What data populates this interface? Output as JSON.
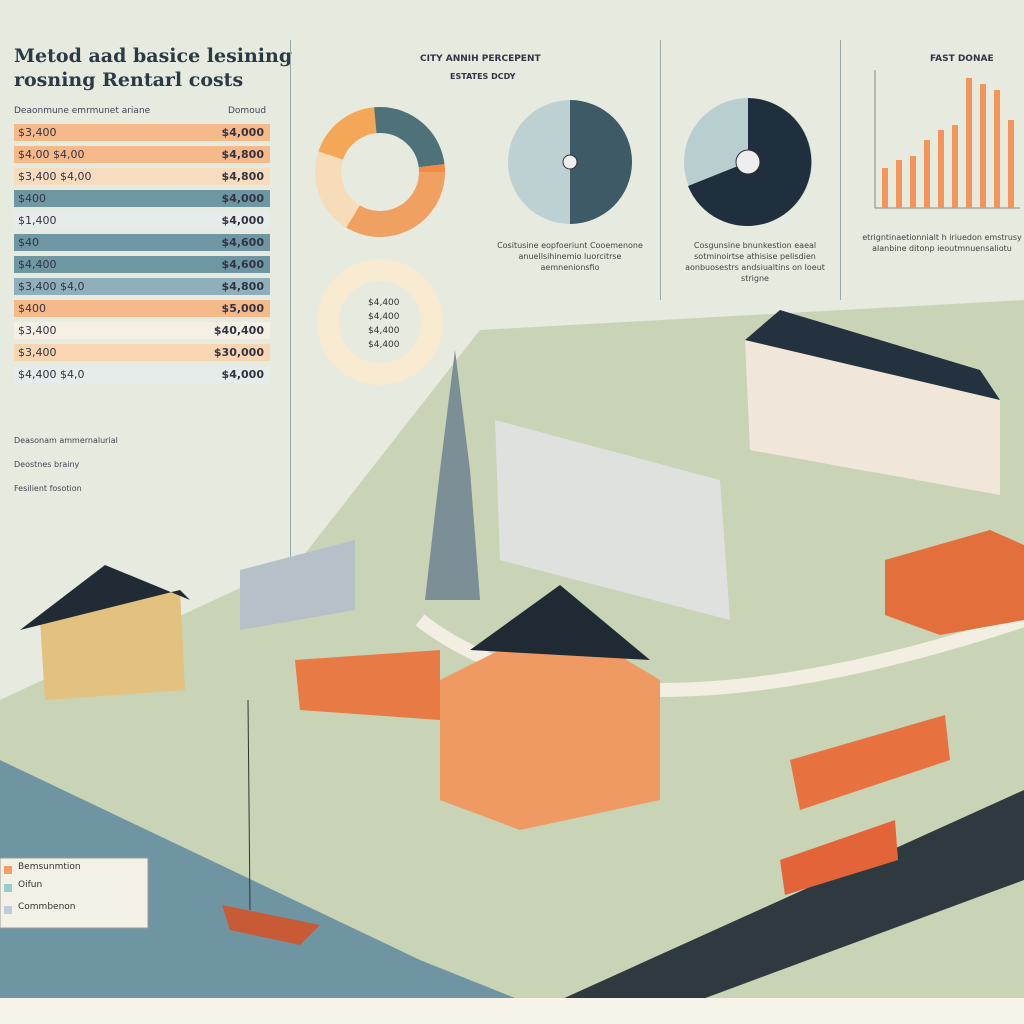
{
  "header": {
    "title_line1": "Metod aad basice lesining",
    "title_line2": "rosning Rentarl costs"
  },
  "table": {
    "header": [
      "Deaonmune emrmunet ariane",
      "Domoud"
    ],
    "rows": [
      [
        "$3,400",
        "$4,000"
      ],
      [
        "$4,00 $4,00",
        "$4,800"
      ],
      [
        "$3,400 $4,00",
        "$4,800"
      ],
      [
        "$400",
        "$4,000"
      ],
      [
        "$1,400",
        "$4,000"
      ],
      [
        "$40",
        "$4,600"
      ],
      [
        "$4,400",
        "$4,600"
      ],
      [
        "$3,400 $4,0",
        "$4,800"
      ],
      [
        "$400",
        "$5,000"
      ],
      [
        "$3,400",
        "$40,400"
      ],
      [
        "$3,400",
        "$30,000"
      ],
      [
        "$4,400 $4,0",
        "$4,000"
      ]
    ],
    "notes": [
      "Deasonam ammernalurial",
      "Deostnes brainy",
      "Fesilient fosotion"
    ]
  },
  "center": {
    "title": "CITY ANNIH PERCEPENT",
    "subtitle": "ESTATES DCDY",
    "caption1": "Cositusine eopfoeriunt Cooemenone anuellsihinemio luorcitrse aemnenionsfio",
    "caption2": "Cosgunsine bnunkestion eaeal sotminoirtse athisise pelisdien aonbuosestrs andsiualtins on loeut strigne",
    "inner_labels": [
      "$4,400",
      "$4,400",
      "$4,400",
      "$4,400"
    ]
  },
  "right": {
    "title": "FAST DONAE",
    "caption": "etrigntinaetionnialt h iriuedon emstrusy alanbine ditonp ieoutmnuensaliotu"
  },
  "legend": [
    "Bemsunmtion",
    "Oifun",
    "Commbenon"
  ]
}
